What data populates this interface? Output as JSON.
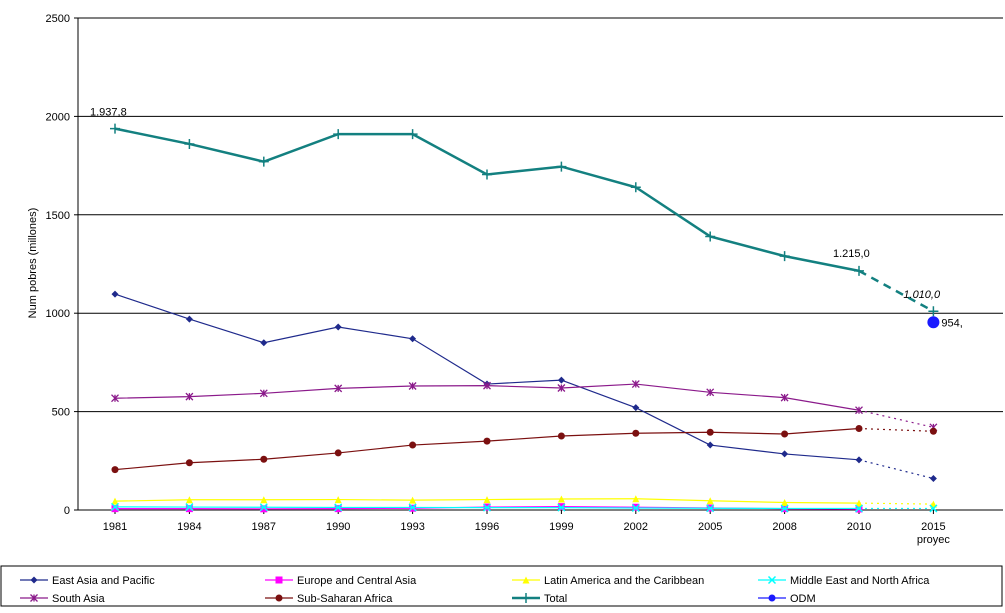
{
  "chart_data": {
    "type": "line",
    "ylabel": "Num pobres (millones)",
    "ylim": [
      0,
      2500
    ],
    "yticks": [
      "0",
      "500",
      "1000",
      "1500",
      "2000",
      "2500"
    ],
    "xtick_labels": [
      "1981",
      "1984",
      "1987",
      "1990",
      "1993",
      "1996",
      "1999",
      "2002",
      "2005",
      "2008",
      "2010",
      "2015"
    ],
    "xtick_sublabel": "proyec",
    "grid": "horizontal",
    "legend_position": "bottom",
    "series": [
      {
        "name": "East Asia and Pacific",
        "color": "#1f2a8c",
        "marker": "diamond",
        "values": [
          1097,
          970,
          850,
          930,
          870,
          640,
          660,
          520,
          330,
          285,
          255,
          160
        ]
      },
      {
        "name": "Europe and Central Asia",
        "color": "#ff00ff",
        "marker": "square",
        "values": [
          7,
          7,
          6,
          7,
          9,
          15,
          17,
          14,
          10,
          7,
          5,
          null
        ]
      },
      {
        "name": "Latin America and the Caribbean",
        "color": "#ffff00",
        "marker": "triangle",
        "values": [
          45,
          52,
          52,
          53,
          50,
          53,
          56,
          57,
          47,
          38,
          35,
          30
        ]
      },
      {
        "name": "Middle East and North Africa",
        "color": "#00ffff",
        "marker": "x",
        "values": [
          16,
          15,
          14,
          13,
          13,
          12,
          12,
          10,
          9,
          8,
          8,
          8
        ]
      },
      {
        "name": "South Asia",
        "color": "#8b1a8b",
        "marker": "star",
        "values": [
          568,
          576,
          593,
          618,
          630,
          632,
          620,
          640,
          598,
          571,
          507,
          420
        ]
      },
      {
        "name": "Sub-Saharan Africa",
        "color": "#7b1010",
        "marker": "circle",
        "values": [
          205,
          240,
          258,
          290,
          330,
          350,
          376,
          390,
          395,
          386,
          414,
          400
        ]
      },
      {
        "name": "Total",
        "color": "#138080",
        "marker": "plus",
        "values": [
          1937.8,
          1860,
          1770,
          1910,
          1910,
          1705,
          1745,
          1640,
          1390,
          1290,
          1215,
          1010
        ]
      },
      {
        "name": "ODM",
        "color": "#1a1aff",
        "marker": "dot",
        "values": [
          null,
          null,
          null,
          null,
          null,
          null,
          null,
          null,
          null,
          null,
          null,
          954
        ]
      }
    ],
    "annotations": [
      {
        "text": "1.937,8"
      },
      {
        "text": "1.215,0"
      },
      {
        "text": "1.010,0"
      },
      {
        "text": "954,"
      }
    ]
  }
}
